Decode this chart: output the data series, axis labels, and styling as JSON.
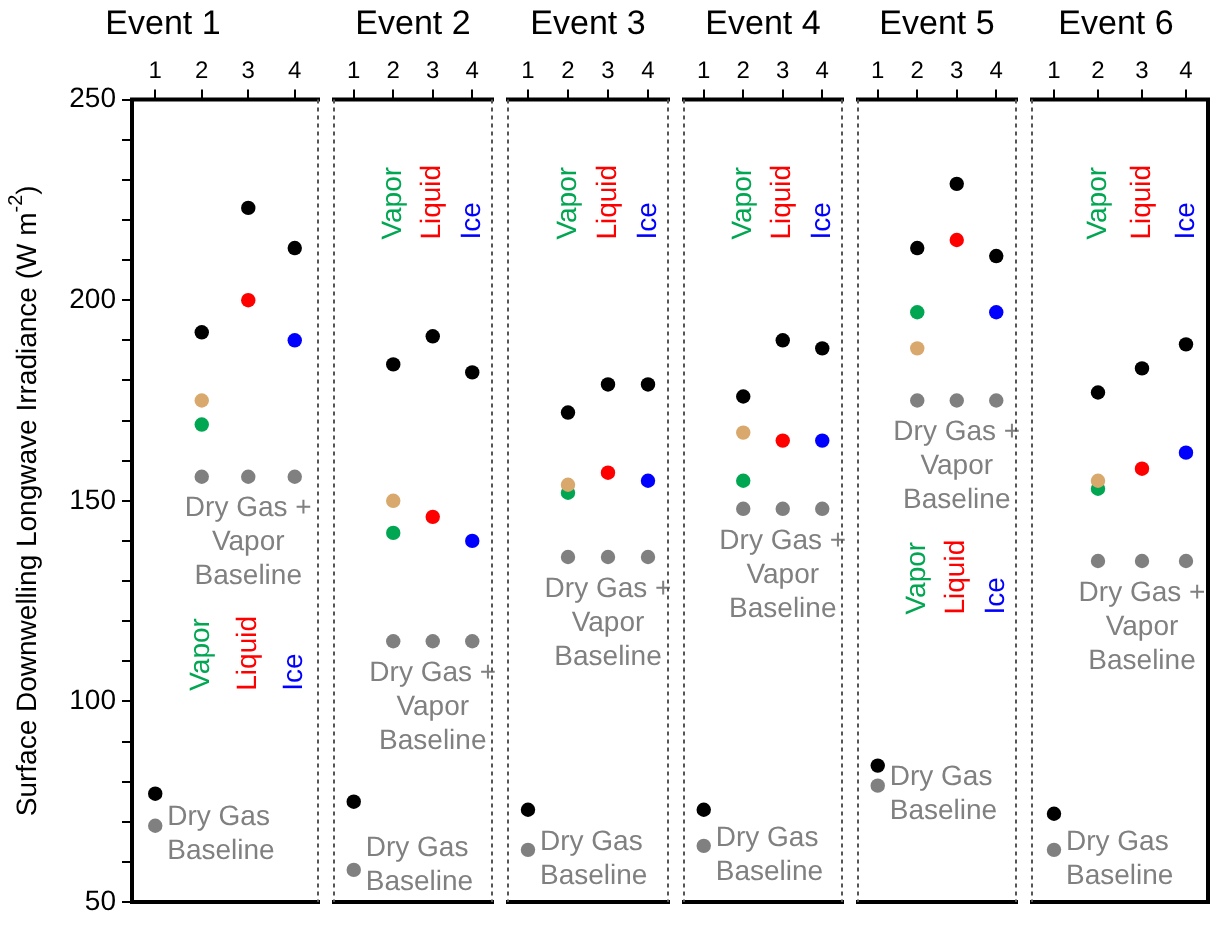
{
  "chart_data": [
    {
      "type": "scatter",
      "title": "Event 1",
      "ylabel": "Surface Downwelling Longwave Irradiance (W m$^{-2}$)",
      "categories": [
        "1",
        "2",
        "3",
        "4"
      ],
      "ylim": [
        50,
        250
      ],
      "yticks": [
        50,
        {
          "value": 60,
          "label": null
        },
        {
          "value": 70,
          "label": null
        },
        {
          "value": 80,
          "label": null
        },
        {
          "value": 90,
          "label": null
        },
        100,
        {
          "value": 110,
          "label": null
        },
        {
          "value": 120,
          "label": null
        },
        {
          "value": 130,
          "label": null
        },
        {
          "value": 140,
          "label": null
        },
        150,
        {
          "value": 160,
          "label": null
        },
        {
          "value": 170,
          "label": null
        },
        {
          "value": 180,
          "label": null
        },
        {
          "value": 190,
          "label": null
        },
        200,
        {
          "value": 210,
          "label": null
        },
        {
          "value": 220,
          "label": null
        },
        {
          "value": 230,
          "label": null
        },
        {
          "value": 240,
          "label": null
        },
        250
      ],
      "marker": "circle",
      "series": [
        {
          "color": "#000000",
          "values": [
            77,
            192,
            223,
            213
          ]
        },
        {
          "name": "Dry Gas Baseline",
          "color": "#808080",
          "values": [
            69,
            null,
            null,
            null
          ]
        },
        {
          "name": "Dry Gas + Vapor Baseline",
          "color": "#808080",
          "values": [
            null,
            156,
            156,
            156
          ]
        },
        {
          "color": "#d9a86c",
          "values": [
            null,
            175,
            null,
            null
          ]
        },
        {
          "name": "Vapor",
          "color": "#00a651",
          "values": [
            null,
            169,
            null,
            null
          ]
        },
        {
          "name": "Liquid",
          "color": "#ff0000",
          "values": [
            null,
            null,
            200,
            null
          ]
        },
        {
          "name": "Ice",
          "color": "#0000ff",
          "values": [
            null,
            null,
            null,
            190
          ]
        }
      ]
    },
    {
      "type": "scatter",
      "title": "Event 2",
      "categories": [
        "1",
        "2",
        "3",
        "4"
      ],
      "ylim": [
        50,
        250
      ],
      "tick_labels": "x",
      "marker": "circle",
      "series": [
        {
          "color": "#000000",
          "values": [
            75,
            184,
            191,
            182
          ]
        },
        {
          "name": "Dry Gas Baseline",
          "color": "#808080",
          "values": [
            58,
            null,
            null,
            null
          ]
        },
        {
          "name": "Dry Gas + Vapor Baseline",
          "color": "#808080",
          "values": [
            null,
            115,
            115,
            115
          ]
        },
        {
          "color": "#d9a86c",
          "values": [
            null,
            150,
            null,
            null
          ]
        },
        {
          "name": "Vapor",
          "color": "#00a651",
          "values": [
            null,
            142,
            null,
            null
          ]
        },
        {
          "name": "Liquid",
          "color": "#ff0000",
          "values": [
            null,
            null,
            146,
            null
          ]
        },
        {
          "name": "Ice",
          "color": "#0000ff",
          "values": [
            null,
            null,
            null,
            140
          ]
        }
      ]
    },
    {
      "type": "scatter",
      "title": "Event 3",
      "categories": [
        "1",
        "2",
        "3",
        "4"
      ],
      "ylim": [
        50,
        250
      ],
      "tick_labels": "x",
      "marker": "circle",
      "series": [
        {
          "color": "#000000",
          "values": [
            73,
            172,
            179,
            179
          ]
        },
        {
          "name": "Dry Gas Baseline",
          "color": "#808080",
          "values": [
            63,
            null,
            null,
            null
          ]
        },
        {
          "name": "Dry Gas + Vapor Baseline",
          "color": "#808080",
          "values": [
            null,
            136,
            136,
            136
          ]
        },
        {
          "color": "#d9a86c",
          "values": [
            null,
            154,
            null,
            null
          ]
        },
        {
          "name": "Vapor",
          "color": "#00a651",
          "values": [
            null,
            152,
            null,
            null
          ]
        },
        {
          "name": "Liquid",
          "color": "#ff0000",
          "values": [
            null,
            null,
            157,
            null
          ]
        },
        {
          "name": "Ice",
          "color": "#0000ff",
          "values": [
            null,
            null,
            null,
            155
          ]
        }
      ]
    },
    {
      "type": "scatter",
      "title": "Event 4",
      "categories": [
        "1",
        "2",
        "3",
        "4"
      ],
      "ylim": [
        50,
        250
      ],
      "tick_labels": "x",
      "marker": "circle",
      "series": [
        {
          "color": "#000000",
          "values": [
            73,
            176,
            190,
            188
          ]
        },
        {
          "name": "Dry Gas Baseline",
          "color": "#808080",
          "values": [
            64,
            null,
            null,
            null
          ]
        },
        {
          "name": "Dry Gas + Vapor Baseline",
          "color": "#808080",
          "values": [
            null,
            148,
            148,
            148
          ]
        },
        {
          "color": "#d9a86c",
          "values": [
            null,
            167,
            null,
            null
          ]
        },
        {
          "name": "Vapor",
          "color": "#00a651",
          "values": [
            null,
            155,
            null,
            null
          ]
        },
        {
          "name": "Liquid",
          "color": "#ff0000",
          "values": [
            null,
            null,
            165,
            null
          ]
        },
        {
          "name": "Ice",
          "color": "#0000ff",
          "values": [
            null,
            null,
            null,
            165
          ]
        }
      ]
    },
    {
      "type": "scatter",
      "title": "Event 5",
      "categories": [
        "1",
        "2",
        "3",
        "4"
      ],
      "ylim": [
        50,
        250
      ],
      "tick_labels": "x",
      "marker": "circle",
      "series": [
        {
          "color": "#000000",
          "values": [
            84,
            213,
            229,
            211
          ]
        },
        {
          "name": "Dry Gas Baseline",
          "color": "#808080",
          "values": [
            79,
            null,
            null,
            null
          ]
        },
        {
          "name": "Dry Gas + Vapor Baseline",
          "color": "#808080",
          "values": [
            null,
            175,
            175,
            175
          ]
        },
        {
          "color": "#d9a86c",
          "values": [
            null,
            188,
            null,
            null
          ]
        },
        {
          "name": "Vapor",
          "color": "#00a651",
          "values": [
            null,
            197,
            null,
            null
          ]
        },
        {
          "name": "Liquid",
          "color": "#ff0000",
          "values": [
            null,
            null,
            215,
            null
          ]
        },
        {
          "name": "Ice",
          "color": "#0000ff",
          "values": [
            null,
            null,
            null,
            197
          ]
        }
      ]
    },
    {
      "type": "scatter",
      "title": "Event 6",
      "categories": [
        "1",
        "2",
        "3",
        "4"
      ],
      "ylim": [
        50,
        250
      ],
      "tick_labels": "x",
      "marker": "circle",
      "series": [
        {
          "color": "#000000",
          "values": [
            72,
            177,
            183,
            189
          ]
        },
        {
          "name": "Dry Gas Baseline",
          "color": "#808080",
          "values": [
            63,
            null,
            null,
            null
          ]
        },
        {
          "name": "Dry Gas + Vapor Baseline",
          "color": "#808080",
          "values": [
            null,
            135,
            135,
            135
          ]
        },
        {
          "color": "#d9a86c",
          "values": [
            null,
            155,
            null,
            null
          ]
        },
        {
          "name": "Vapor",
          "color": "#00a651",
          "values": [
            null,
            153,
            null,
            null
          ]
        },
        {
          "name": "Liquid",
          "color": "#ff0000",
          "values": [
            null,
            null,
            158,
            null
          ]
        },
        {
          "name": "Ice",
          "color": "#0000ff",
          "values": [
            null,
            null,
            null,
            162
          ]
        }
      ]
    }
  ]
}
